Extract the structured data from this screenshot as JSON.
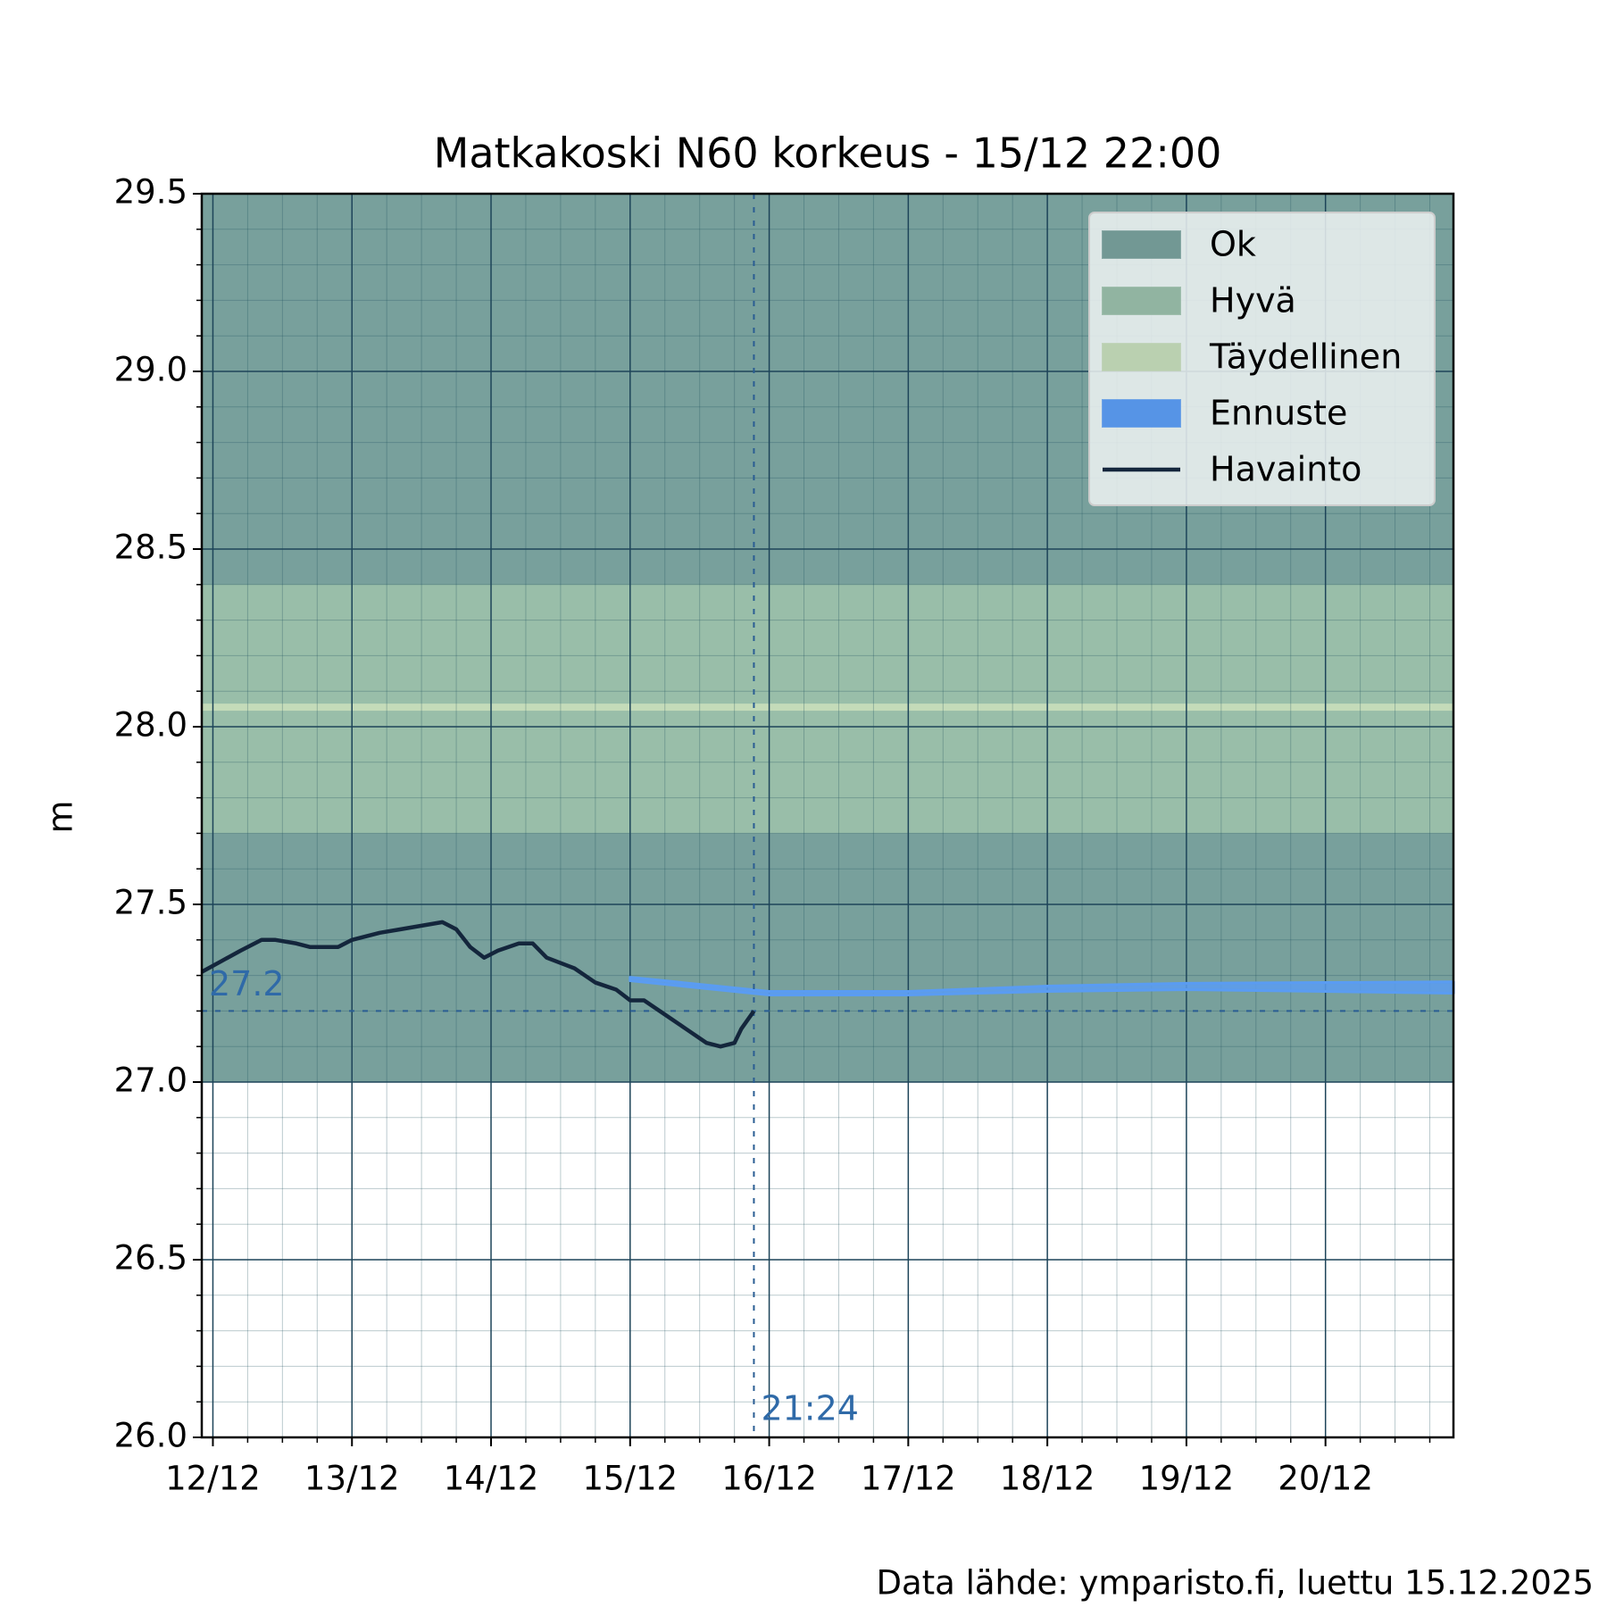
{
  "chart_data": {
    "type": "line",
    "title": "Matkakoski N60 korkeus  -  15/12 22:00",
    "ylabel": "m",
    "footer": "Data lähde: ymparisto.fi, luettu 15.12.2025",
    "xlim": [
      11.92,
      20.92
    ],
    "xticks": [
      {
        "value": 12,
        "label": "12/12"
      },
      {
        "value": 13,
        "label": "13/12"
      },
      {
        "value": 14,
        "label": "14/12"
      },
      {
        "value": 15,
        "label": "15/12"
      },
      {
        "value": 16,
        "label": "16/12"
      },
      {
        "value": 17,
        "label": "17/12"
      },
      {
        "value": 18,
        "label": "18/12"
      },
      {
        "value": 19,
        "label": "19/12"
      },
      {
        "value": 20,
        "label": "20/12"
      }
    ],
    "ylim": [
      26.0,
      29.5
    ],
    "yticks": [
      {
        "value": 26,
        "label": "26.0"
      },
      26.5,
      {
        "value": 27,
        "label": "27.0"
      },
      27.5,
      {
        "value": 28,
        "label": "28.0"
      },
      28.5,
      {
        "value": 29,
        "label": "29.0"
      },
      29.5
    ],
    "grid": true,
    "legend": "upper right",
    "bands": [
      {
        "name": "Ok",
        "color": "#78a09c",
        "range": [
          27.0,
          29.5
        ]
      },
      {
        "name": "Hyvä",
        "color": "#99bea9",
        "range": [
          27.7,
          28.4
        ]
      },
      {
        "name": "Täydellinen",
        "color": "#c4dbb9",
        "range": [
          28.045,
          28.065
        ]
      }
    ],
    "forecast": {
      "name": "Ennuste",
      "color": "#5a9cf2",
      "x": [
        15.0,
        16.0,
        17.0,
        18.0,
        19.0,
        20.0,
        20.92
      ],
      "lower": [
        27.285,
        27.245,
        27.245,
        27.255,
        27.26,
        27.255,
        27.25
      ],
      "upper": [
        27.295,
        27.255,
        27.255,
        27.27,
        27.278,
        27.28,
        27.282
      ]
    },
    "observed": {
      "name": "Havainto",
      "color": "#14263c",
      "x": [
        11.92,
        12.06,
        12.2,
        12.3,
        12.35,
        12.45,
        12.6,
        12.7,
        12.9,
        13.0,
        13.2,
        13.35,
        13.5,
        13.65,
        13.75,
        13.85,
        13.95,
        14.05,
        14.2,
        14.3,
        14.4,
        14.6,
        14.75,
        14.9,
        15.0,
        15.1,
        15.25,
        15.4,
        15.55,
        15.65,
        15.75,
        15.8,
        15.89
      ],
      "values": [
        27.31,
        27.34,
        27.37,
        27.39,
        27.4,
        27.4,
        27.39,
        27.38,
        27.38,
        27.4,
        27.42,
        27.43,
        27.44,
        27.45,
        27.43,
        27.38,
        27.35,
        27.37,
        27.39,
        27.39,
        27.35,
        27.32,
        27.28,
        27.26,
        27.23,
        27.23,
        27.19,
        27.15,
        27.11,
        27.1,
        27.11,
        27.15,
        27.2
      ]
    },
    "annotations": {
      "now": {
        "x": 15.89,
        "label": "21:24"
      },
      "last": {
        "value": 27.2
      }
    }
  }
}
